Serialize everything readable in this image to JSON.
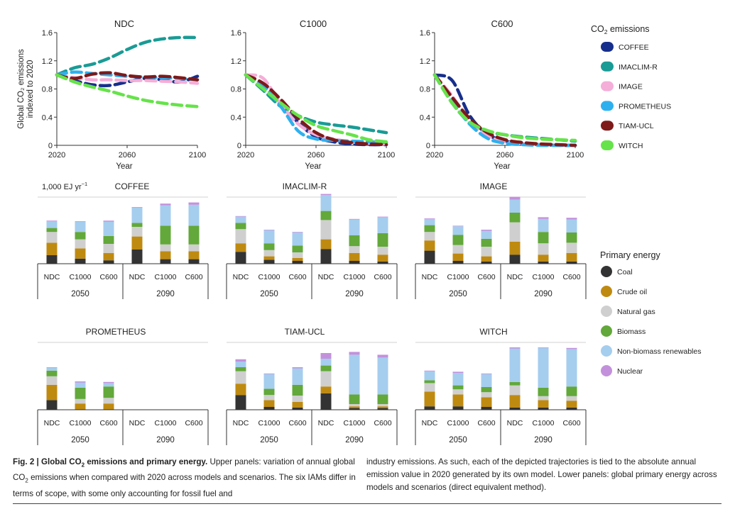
{
  "colors": {
    "models": {
      "COFFEE": "#172f8c",
      "IMACLIM-R": "#1a9b95",
      "IMAGE": "#f4aed8",
      "PROMETHEUS": "#2fb0ee",
      "TIAM-UCL": "#7e1a1a",
      "WITCH": "#66e34a"
    },
    "energy": {
      "Coal": "#333333",
      "Crude oil": "#bf8a10",
      "Natural gas": "#cfcfcf",
      "Biomass": "#62a83a",
      "Non-biomass renewables": "#a5cdee",
      "Nuclear": "#c391dc"
    }
  },
  "icons": {
    "legend_marker": "rounded-swatch-icon"
  },
  "legend_emissions": {
    "title_pre": "CO",
    "title_sub": "2",
    "title_post": " emissions",
    "items": [
      "COFFEE",
      "IMACLIM-R",
      "IMAGE",
      "PROMETHEUS",
      "TIAM-UCL",
      "WITCH"
    ]
  },
  "legend_energy": {
    "title": "Primary energy",
    "items": [
      "Coal",
      "Crude oil",
      "Natural gas",
      "Biomass",
      "Non-biomass renewables",
      "Nuclear"
    ]
  },
  "caption": {
    "fig_label": "Fig. 2 | Global CO",
    "fig_label_sub": "2",
    "fig_label_post": " emissions and primary energy.",
    "left_1": " Upper panels: variation of annual global CO",
    "left_sub": "2",
    "left_2": " emissions when compared with 2020 across models and scenarios. The six IAMs differ in terms of scope, with some only accounting for fossil fuel and",
    "right": "industry emissions. As such, each of the depicted trajectories is tied to the absolute annual emission value in 2020 generated by its own model. Lower panels: global primary energy across models and scenarios (direct equivalent method)."
  },
  "chart_data": [
    {
      "type": "line",
      "title": "NDC",
      "xlabel": "Year",
      "ylabel_lines": [
        "Global CO₂ emissions",
        "indexed to 2020"
      ],
      "xlim": [
        2020,
        2100
      ],
      "ylim": [
        0,
        1.6
      ],
      "xticks": [
        2020,
        2060,
        2100
      ],
      "yticks": [
        "0",
        "0.4",
        "0.8",
        "1.2",
        "1.6"
      ],
      "x": [
        2020,
        2030,
        2040,
        2050,
        2060,
        2070,
        2080,
        2090,
        2100
      ],
      "series": [
        {
          "name": "COFFEE",
          "values": [
            1.0,
            0.92,
            0.86,
            0.85,
            0.9,
            0.95,
            0.93,
            0.9,
            0.98
          ]
        },
        {
          "name": "IMACLIM-R",
          "values": [
            1.0,
            1.1,
            1.15,
            1.24,
            1.36,
            1.46,
            1.51,
            1.53,
            1.53
          ]
        },
        {
          "name": "IMAGE",
          "values": [
            1.0,
            0.96,
            0.93,
            0.93,
            0.92,
            0.92,
            0.91,
            0.9,
            0.88
          ]
        },
        {
          "name": "PROMETHEUS",
          "values": [
            1.0,
            1.04,
            1.02,
            1.0,
            0.98,
            0.97,
            0.96,
            0.95,
            0.93
          ]
        },
        {
          "name": "TIAM-UCL",
          "values": [
            1.0,
            0.95,
            1.01,
            1.03,
            0.99,
            0.97,
            0.98,
            0.96,
            0.93
          ]
        },
        {
          "name": "WITCH",
          "values": [
            1.0,
            0.9,
            0.83,
            0.77,
            0.7,
            0.64,
            0.6,
            0.57,
            0.55
          ]
        }
      ]
    },
    {
      "type": "line",
      "title": "C1000",
      "xlabel": "Year",
      "xlim": [
        2020,
        2100
      ],
      "ylim": [
        0,
        1.6
      ],
      "xticks": [
        2020,
        2060,
        2100
      ],
      "yticks": [
        "0",
        "0.4",
        "0.8",
        "1.2",
        "1.6"
      ],
      "x": [
        2020,
        2030,
        2040,
        2050,
        2060,
        2070,
        2080,
        2090,
        2100
      ],
      "series": [
        {
          "name": "COFFEE",
          "values": [
            1.0,
            0.85,
            0.6,
            0.32,
            0.12,
            0.05,
            0.02,
            0.01,
            0.01
          ]
        },
        {
          "name": "IMACLIM-R",
          "values": [
            1.0,
            0.78,
            0.55,
            0.42,
            0.33,
            0.29,
            0.26,
            0.22,
            0.18
          ]
        },
        {
          "name": "IMAGE",
          "values": [
            1.0,
            0.95,
            0.58,
            0.3,
            0.15,
            0.09,
            0.05,
            0.03,
            0.02
          ]
        },
        {
          "name": "PROMETHEUS",
          "values": [
            1.0,
            0.84,
            0.55,
            0.2,
            0.09,
            0.07,
            0.06,
            0.05,
            0.04
          ]
        },
        {
          "name": "TIAM-UCL",
          "values": [
            1.0,
            0.88,
            0.65,
            0.38,
            0.18,
            0.08,
            0.04,
            0.02,
            0.01
          ]
        },
        {
          "name": "WITCH",
          "values": [
            1.0,
            0.8,
            0.6,
            0.42,
            0.28,
            0.21,
            0.15,
            0.08,
            0.05
          ]
        }
      ]
    },
    {
      "type": "line",
      "title": "C600",
      "xlabel": "Year",
      "xlim": [
        2020,
        2100
      ],
      "ylim": [
        0,
        1.6
      ],
      "xticks": [
        2020,
        2060,
        2100
      ],
      "yticks": [
        "0",
        "0.4",
        "0.8",
        "1.2",
        "1.6"
      ],
      "x": [
        2020,
        2030,
        2040,
        2050,
        2060,
        2070,
        2080,
        2090,
        2100
      ],
      "series": [
        {
          "name": "COFFEE",
          "values": [
            1.0,
            0.92,
            0.42,
            0.16,
            0.06,
            0.02,
            0.01,
            0.0,
            0.0
          ]
        },
        {
          "name": "IMACLIM-R",
          "values": [
            1.0,
            0.6,
            0.32,
            0.2,
            0.15,
            0.12,
            0.1,
            0.08,
            0.06
          ]
        },
        {
          "name": "IMAGE",
          "values": [
            1.0,
            0.7,
            0.34,
            0.14,
            0.05,
            0.02,
            0.01,
            0.0,
            0.0
          ]
        },
        {
          "name": "PROMETHEUS",
          "values": [
            1.0,
            0.62,
            0.3,
            0.1,
            0.03,
            0.01,
            0.0,
            0.0,
            0.0
          ]
        },
        {
          "name": "TIAM-UCL",
          "values": [
            1.0,
            0.68,
            0.38,
            0.18,
            0.08,
            0.04,
            0.02,
            0.01,
            0.0
          ]
        },
        {
          "name": "WITCH",
          "values": [
            1.0,
            0.6,
            0.33,
            0.21,
            0.15,
            0.11,
            0.09,
            0.08,
            0.07
          ]
        }
      ]
    },
    {
      "type": "bar",
      "stacked": true,
      "unit_label": "1,000 EJ yr",
      "unit_sup": "−1",
      "ylim": [
        0,
        1.1
      ],
      "scenarios": [
        "NDC",
        "C1000",
        "C600"
      ],
      "periods": [
        "2050",
        "2090"
      ],
      "components": [
        "Coal",
        "Crude oil",
        "Natural gas",
        "Biomass",
        "Non-biomass renewables",
        "Nuclear"
      ],
      "panels": [
        {
          "model": "COFFEE",
          "bars": [
            [
              0.15,
              0.22,
              0.19,
              0.07,
              0.12,
              0.01
            ],
            [
              0.09,
              0.18,
              0.16,
              0.13,
              0.18,
              0.01
            ],
            [
              0.06,
              0.13,
              0.16,
              0.14,
              0.25,
              0.02
            ],
            [
              0.25,
              0.23,
              0.17,
              0.07,
              0.27,
              0.01
            ],
            [
              0.08,
              0.14,
              0.12,
              0.33,
              0.36,
              0.03
            ],
            [
              0.08,
              0.14,
              0.12,
              0.33,
              0.37,
              0.04
            ]
          ]
        },
        {
          "model": "IMACLIM-R",
          "bars": [
            [
              0.21,
              0.15,
              0.25,
              0.11,
              0.11,
              0.01
            ],
            [
              0.07,
              0.06,
              0.11,
              0.12,
              0.23,
              0.01
            ],
            [
              0.05,
              0.05,
              0.1,
              0.12,
              0.23,
              0.01
            ],
            [
              0.26,
              0.17,
              0.34,
              0.16,
              0.28,
              0.02
            ],
            [
              0.05,
              0.14,
              0.12,
              0.19,
              0.28,
              0.01
            ],
            [
              0.04,
              0.12,
              0.14,
              0.24,
              0.28,
              0.01
            ]
          ]
        },
        {
          "model": "IMAGE",
          "bars": [
            [
              0.23,
              0.18,
              0.15,
              0.12,
              0.11,
              0.01
            ],
            [
              0.05,
              0.13,
              0.15,
              0.18,
              0.15,
              0.01
            ],
            [
              0.04,
              0.09,
              0.17,
              0.14,
              0.14,
              0.02
            ],
            [
              0.16,
              0.23,
              0.34,
              0.17,
              0.23,
              0.05
            ],
            [
              0.04,
              0.12,
              0.2,
              0.2,
              0.23,
              0.03
            ],
            [
              0.04,
              0.15,
              0.18,
              0.18,
              0.23,
              0.03
            ]
          ]
        },
        {
          "model": "PROMETHEUS",
          "bars": [
            [
              0.17,
              0.27,
              0.15,
              0.1,
              0.05,
              0.01
            ],
            [
              0.01,
              0.1,
              0.08,
              0.2,
              0.09,
              0.02
            ],
            [
              0.01,
              0.1,
              0.1,
              0.2,
              0.06,
              0.02
            ],
            [
              0,
              0,
              0,
              0,
              0,
              0
            ],
            [
              0,
              0,
              0,
              0,
              0,
              0
            ],
            [
              0,
              0,
              0,
              0,
              0,
              0
            ]
          ]
        },
        {
          "model": "TIAM-UCL",
          "bars": [
            [
              0.26,
              0.2,
              0.22,
              0.07,
              0.1,
              0.04
            ],
            [
              0.05,
              0.12,
              0.09,
              0.11,
              0.26,
              0.01
            ],
            [
              0.04,
              0.1,
              0.11,
              0.19,
              0.29,
              0.02
            ],
            [
              0.29,
              0.12,
              0.27,
              0.1,
              0.12,
              0.1
            ],
            [
              0.03,
              0.03,
              0.04,
              0.17,
              0.7,
              0.05
            ],
            [
              0.03,
              0.03,
              0.04,
              0.17,
              0.65,
              0.05
            ]
          ]
        },
        {
          "model": "WITCH",
          "bars": [
            [
              0.06,
              0.26,
              0.15,
              0.05,
              0.16,
              0.01
            ],
            [
              0.06,
              0.21,
              0.09,
              0.07,
              0.22,
              0.02
            ],
            [
              0.05,
              0.17,
              0.09,
              0.09,
              0.23,
              0.01
            ],
            [
              0.04,
              0.22,
              0.17,
              0.06,
              0.59,
              0.02
            ],
            [
              0.04,
              0.13,
              0.07,
              0.15,
              0.7,
              0.01
            ],
            [
              0.04,
              0.12,
              0.08,
              0.17,
              0.66,
              0.02
            ]
          ]
        }
      ]
    }
  ]
}
